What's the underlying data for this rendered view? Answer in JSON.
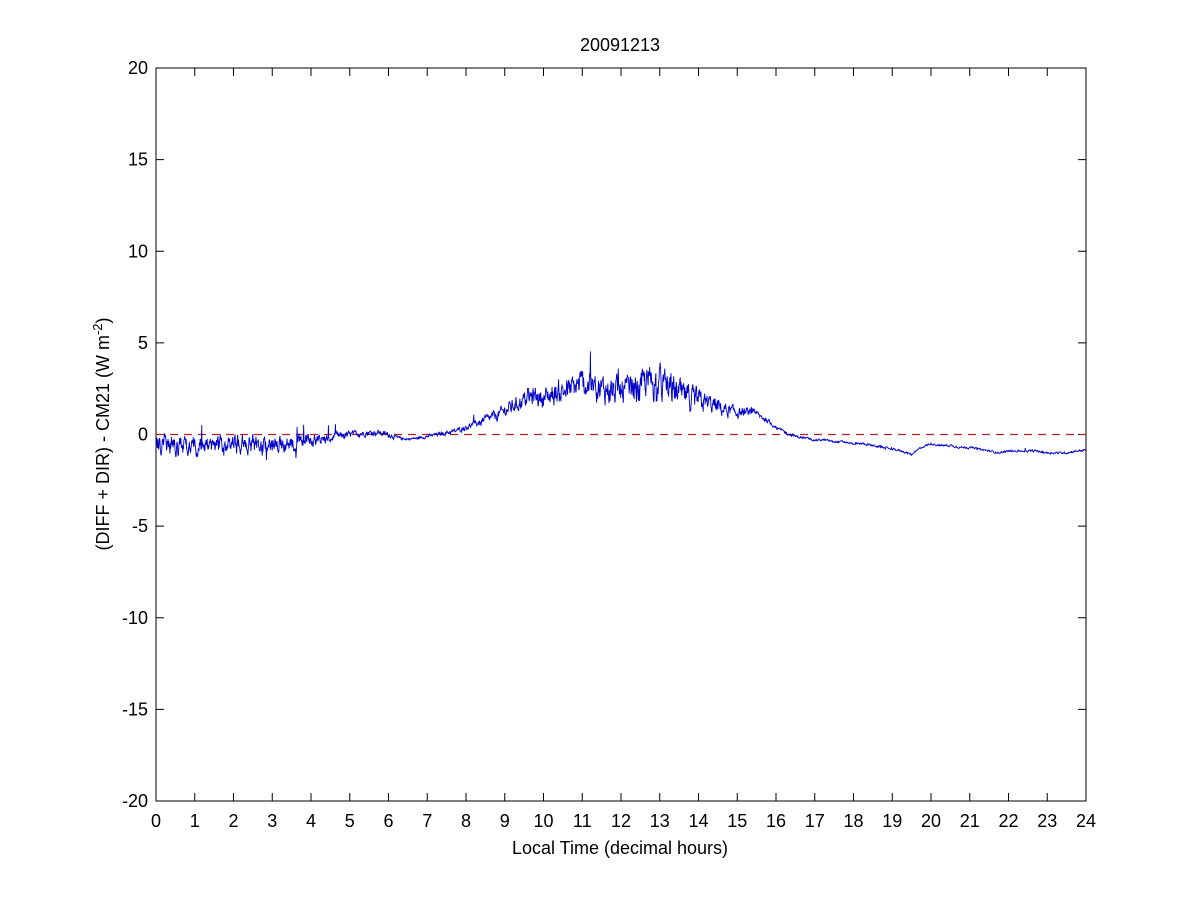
{
  "chart_data": {
    "type": "line",
    "title": "20091213",
    "xlabel": "Local Time (decimal hours)",
    "ylabel": {
      "text": "(DIFF + DIR) - CM21 (W m",
      "superscript": "-2",
      "suffix": ")"
    },
    "xlim": [
      0,
      24
    ],
    "ylim": [
      -20,
      20
    ],
    "xticks": [
      0,
      1,
      2,
      3,
      4,
      5,
      6,
      7,
      8,
      9,
      10,
      11,
      12,
      13,
      14,
      15,
      16,
      17,
      18,
      19,
      20,
      21,
      22,
      23,
      24
    ],
    "yticks": [
      -20,
      -15,
      -10,
      -5,
      0,
      5,
      10,
      15,
      20
    ],
    "grid": false,
    "reference_line": {
      "y": 0,
      "style": "dashed",
      "color": "#b22222"
    },
    "series": [
      {
        "color": "#0000cc",
        "points": [
          [
            0,
            -0.6
          ],
          [
            0.25,
            -0.5
          ],
          [
            0.5,
            -0.7
          ],
          [
            0.75,
            -0.6
          ],
          [
            1,
            -0.6
          ],
          [
            1.25,
            -0.6
          ],
          [
            1.5,
            -0.7
          ],
          [
            1.75,
            -0.6
          ],
          [
            2,
            -0.6
          ],
          [
            2.25,
            -0.5
          ],
          [
            2.5,
            -0.6
          ],
          [
            2.75,
            -0.6
          ],
          [
            3,
            -0.5
          ],
          [
            3.25,
            -0.6
          ],
          [
            3.5,
            -0.5
          ],
          [
            3.75,
            -0.4
          ],
          [
            4,
            -0.4
          ],
          [
            4.25,
            -0.3
          ],
          [
            4.5,
            -0.2
          ],
          [
            4.75,
            -0.1
          ],
          [
            5,
            0
          ],
          [
            5.25,
            0.05
          ],
          [
            5.5,
            0.1
          ],
          [
            5.75,
            0.1
          ],
          [
            6,
            0
          ],
          [
            6.25,
            -0.2
          ],
          [
            6.5,
            -0.25
          ],
          [
            6.75,
            -0.2
          ],
          [
            7,
            -0.1
          ],
          [
            7.25,
            0
          ],
          [
            7.5,
            0.1
          ],
          [
            7.75,
            0.2
          ],
          [
            8,
            0.4
          ],
          [
            8.25,
            0.6
          ],
          [
            8.5,
            0.8
          ],
          [
            8.75,
            1.0
          ],
          [
            9,
            1.3
          ],
          [
            9.25,
            1.6
          ],
          [
            9.5,
            1.9
          ],
          [
            9.75,
            2.1
          ],
          [
            10,
            2.0
          ],
          [
            10.25,
            2.2
          ],
          [
            10.5,
            2.4
          ],
          [
            10.75,
            2.5
          ],
          [
            11,
            2.8
          ],
          [
            11.25,
            2.6
          ],
          [
            11.5,
            2.5
          ],
          [
            11.75,
            2.4
          ],
          [
            12,
            2.3
          ],
          [
            12.25,
            2.4
          ],
          [
            12.5,
            2.6
          ],
          [
            12.75,
            2.9
          ],
          [
            13,
            2.8
          ],
          [
            13.25,
            2.5
          ],
          [
            13.5,
            2.2
          ],
          [
            13.75,
            2.0
          ],
          [
            14,
            1.8
          ],
          [
            14.25,
            1.7
          ],
          [
            14.5,
            1.5
          ],
          [
            14.75,
            1.3
          ],
          [
            15,
            1.2
          ],
          [
            15.25,
            1.2
          ],
          [
            15.5,
            1.1
          ],
          [
            15.75,
            0.8
          ],
          [
            16,
            0.4
          ],
          [
            16.25,
            0.1
          ],
          [
            16.5,
            -0.1
          ],
          [
            16.75,
            -0.2
          ],
          [
            17,
            -0.3
          ],
          [
            17.25,
            -0.3
          ],
          [
            17.5,
            -0.4
          ],
          [
            17.75,
            -0.4
          ],
          [
            18,
            -0.5
          ],
          [
            18.25,
            -0.5
          ],
          [
            18.5,
            -0.6
          ],
          [
            18.75,
            -0.7
          ],
          [
            19,
            -0.8
          ],
          [
            19.25,
            -0.9
          ],
          [
            19.5,
            -1.1
          ],
          [
            19.75,
            -0.7
          ],
          [
            20,
            -0.5
          ],
          [
            20.25,
            -0.6
          ],
          [
            20.5,
            -0.6
          ],
          [
            20.75,
            -0.7
          ],
          [
            21,
            -0.7
          ],
          [
            21.25,
            -0.8
          ],
          [
            21.5,
            -0.9
          ],
          [
            21.75,
            -1.0
          ],
          [
            22,
            -0.9
          ],
          [
            22.25,
            -0.9
          ],
          [
            22.5,
            -0.9
          ],
          [
            22.75,
            -0.9
          ],
          [
            23,
            -1.0
          ],
          [
            23.25,
            -1.0
          ],
          [
            23.5,
            -1.0
          ],
          [
            23.75,
            -0.9
          ],
          [
            24,
            -0.85
          ]
        ],
        "noise_amplitude": [
          [
            0,
            0.9
          ],
          [
            2,
            0.9
          ],
          [
            3.5,
            0.8
          ],
          [
            5,
            0.3
          ],
          [
            6,
            0.25
          ],
          [
            6.5,
            0.1
          ],
          [
            8,
            0.25
          ],
          [
            9,
            0.6
          ],
          [
            10,
            1.0
          ],
          [
            11,
            1.3
          ],
          [
            12,
            1.4
          ],
          [
            13,
            1.6
          ],
          [
            14,
            1.1
          ],
          [
            15,
            0.5
          ],
          [
            16,
            0.15
          ],
          [
            17,
            0.1
          ],
          [
            24,
            0.1
          ]
        ]
      }
    ]
  }
}
